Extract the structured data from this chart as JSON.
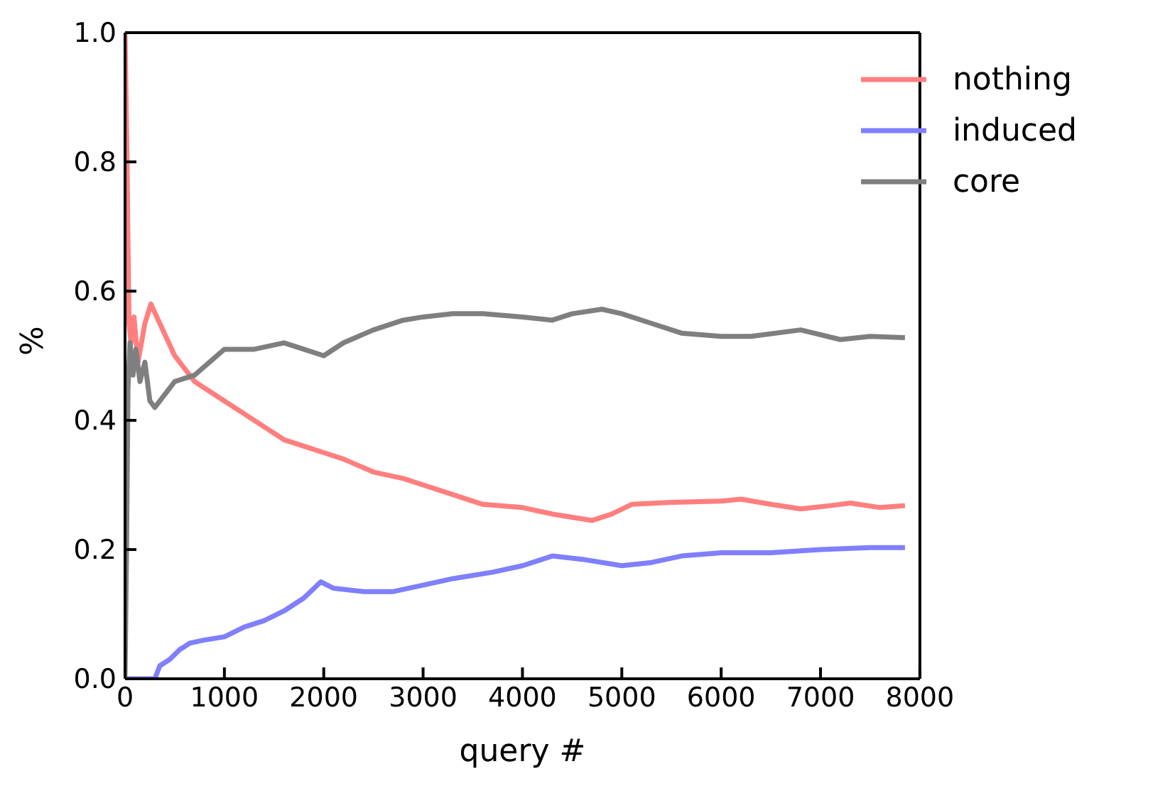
{
  "chart_data": {
    "type": "line",
    "xlabel": "query #",
    "ylabel": "%",
    "xlim": [
      0,
      8000
    ],
    "xticks": [
      0,
      1000,
      2000,
      3000,
      4000,
      5000,
      6000,
      7000,
      8000
    ],
    "ylim": [
      0,
      1
    ],
    "yticks": [
      {
        "value": 0,
        "label": "0.0"
      },
      {
        "value": 0.2,
        "label": "0.2"
      },
      {
        "value": 0.4,
        "label": "0.4"
      },
      {
        "value": 0.6,
        "label": "0.6"
      },
      {
        "value": 0.8,
        "label": "0.8"
      },
      {
        "value": 1,
        "label": "1.0"
      }
    ],
    "grid": false,
    "legend": "top right",
    "marker": "none",
    "line_style": "solid",
    "series": [
      {
        "name": "nothing",
        "color": "#ff7f7f",
        "x": [
          0,
          20,
          40,
          60,
          90,
          130,
          200,
          260,
          350,
          500,
          600,
          700,
          800,
          1000,
          1200,
          1400,
          1600,
          1800,
          2000,
          2200,
          2500,
          2800,
          3000,
          3300,
          3600,
          4000,
          4300,
          4700,
          4900,
          5100,
          5500,
          6000,
          6200,
          6500,
          6800,
          7100,
          7300,
          7600,
          7850
        ],
        "values": [
          1.0,
          0.8,
          0.55,
          0.52,
          0.56,
          0.49,
          0.55,
          0.58,
          0.55,
          0.5,
          0.48,
          0.46,
          0.45,
          0.43,
          0.41,
          0.39,
          0.37,
          0.36,
          0.35,
          0.34,
          0.32,
          0.31,
          0.3,
          0.285,
          0.27,
          0.265,
          0.255,
          0.245,
          0.255,
          0.27,
          0.273,
          0.275,
          0.278,
          0.27,
          0.263,
          0.268,
          0.272,
          0.265,
          0.268
        ]
      },
      {
        "name": "induced",
        "color": "#7f7fff",
        "x": [
          0,
          300,
          350,
          450,
          550,
          650,
          800,
          1000,
          1200,
          1400,
          1600,
          1800,
          1970,
          2100,
          2400,
          2700,
          3000,
          3300,
          3700,
          4000,
          4300,
          4600,
          5000,
          5300,
          5600,
          6000,
          6500,
          7000,
          7500,
          7850
        ],
        "values": [
          0,
          0,
          0.02,
          0.03,
          0.045,
          0.055,
          0.06,
          0.065,
          0.08,
          0.09,
          0.105,
          0.125,
          0.15,
          0.14,
          0.135,
          0.135,
          0.145,
          0.155,
          0.165,
          0.175,
          0.19,
          0.185,
          0.175,
          0.18,
          0.19,
          0.195,
          0.195,
          0.2,
          0.203,
          0.203
        ]
      },
      {
        "name": "core",
        "color": "#7f7f7f",
        "x": [
          0,
          15,
          30,
          50,
          80,
          110,
          150,
          200,
          250,
          300,
          400,
          500,
          700,
          850,
          1000,
          1300,
          1600,
          1800,
          2000,
          2200,
          2500,
          2800,
          3000,
          3300,
          3600,
          4000,
          4300,
          4500,
          4800,
          5000,
          5300,
          5600,
          6000,
          6300,
          6800,
          7200,
          7500,
          7850
        ],
        "values": [
          0,
          0.2,
          0.45,
          0.52,
          0.47,
          0.51,
          0.46,
          0.49,
          0.43,
          0.42,
          0.44,
          0.46,
          0.47,
          0.49,
          0.51,
          0.51,
          0.52,
          0.51,
          0.5,
          0.52,
          0.54,
          0.555,
          0.56,
          0.565,
          0.565,
          0.56,
          0.555,
          0.565,
          0.572,
          0.565,
          0.55,
          0.535,
          0.53,
          0.53,
          0.54,
          0.525,
          0.53,
          0.528
        ]
      }
    ]
  }
}
